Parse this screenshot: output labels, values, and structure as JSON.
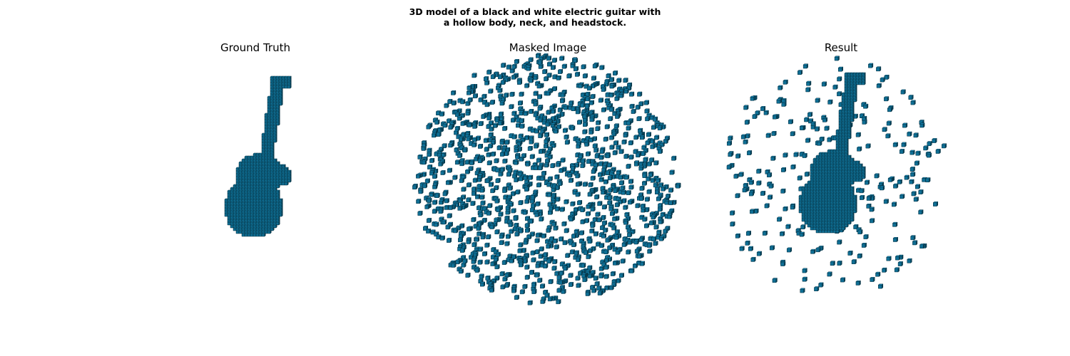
{
  "figure": {
    "title_line1": "3D model of a black and white electric guitar with",
    "title_line2": "a hollow body, neck, and headstock."
  },
  "panels": [
    {
      "title": "Ground Truth"
    },
    {
      "title": "Masked Image"
    },
    {
      "title": "Result"
    }
  ],
  "colors": {
    "voxel_top": "#1a9bd0",
    "voxel_left": "#0f6f95",
    "voxel_right": "#07465e",
    "voxel_edge": "#052c3b"
  }
}
